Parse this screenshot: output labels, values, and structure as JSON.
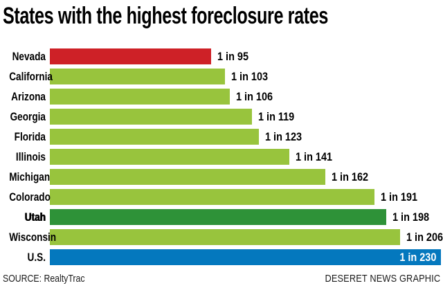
{
  "title": "States with the highest foreclosure rates",
  "footer": {
    "source": "SOURCE: RealtyTrac",
    "credit": "DESERET NEWS GRAPHIC"
  },
  "colors": {
    "red": "#CE2127",
    "green": "#98C43D",
    "dark_green": "#2E9238",
    "blue": "#0478BE",
    "text": "#000000",
    "inside_value_text": "#FFFFFF",
    "background": "#FFFFFF"
  },
  "chart_data": {
    "type": "bar",
    "orientation": "horizontal",
    "title": "States with the highest foreclosure rates",
    "categories": [
      "Nevada",
      "California",
      "Arizona",
      "Georgia",
      "Florida",
      "Illinois",
      "Michigan",
      "Colorado",
      "Utah",
      "Wisconsin",
      "U.S."
    ],
    "values": [
      95,
      103,
      106,
      119,
      123,
      141,
      162,
      191,
      198,
      206,
      230
    ],
    "value_labels": [
      "1 in 95",
      "1 in 103",
      "1 in 106",
      "1 in 119",
      "1 in 123",
      "1 in 141",
      "1 in 162",
      "1 in 191",
      "1 in 198",
      "1 in 206",
      "1 in 230"
    ],
    "bar_colors": [
      "red",
      "green",
      "green",
      "green",
      "green",
      "green",
      "green",
      "green",
      "dark_green",
      "green",
      "blue"
    ],
    "value_label_placement": [
      "outside",
      "outside",
      "outside",
      "outside",
      "outside",
      "outside",
      "outside",
      "outside",
      "outside",
      "outside",
      "inside"
    ],
    "highlighted_category": "Utah",
    "xlim": [
      0,
      230
    ],
    "grid": false,
    "legend": false,
    "xlabel": "",
    "ylabel": ""
  }
}
